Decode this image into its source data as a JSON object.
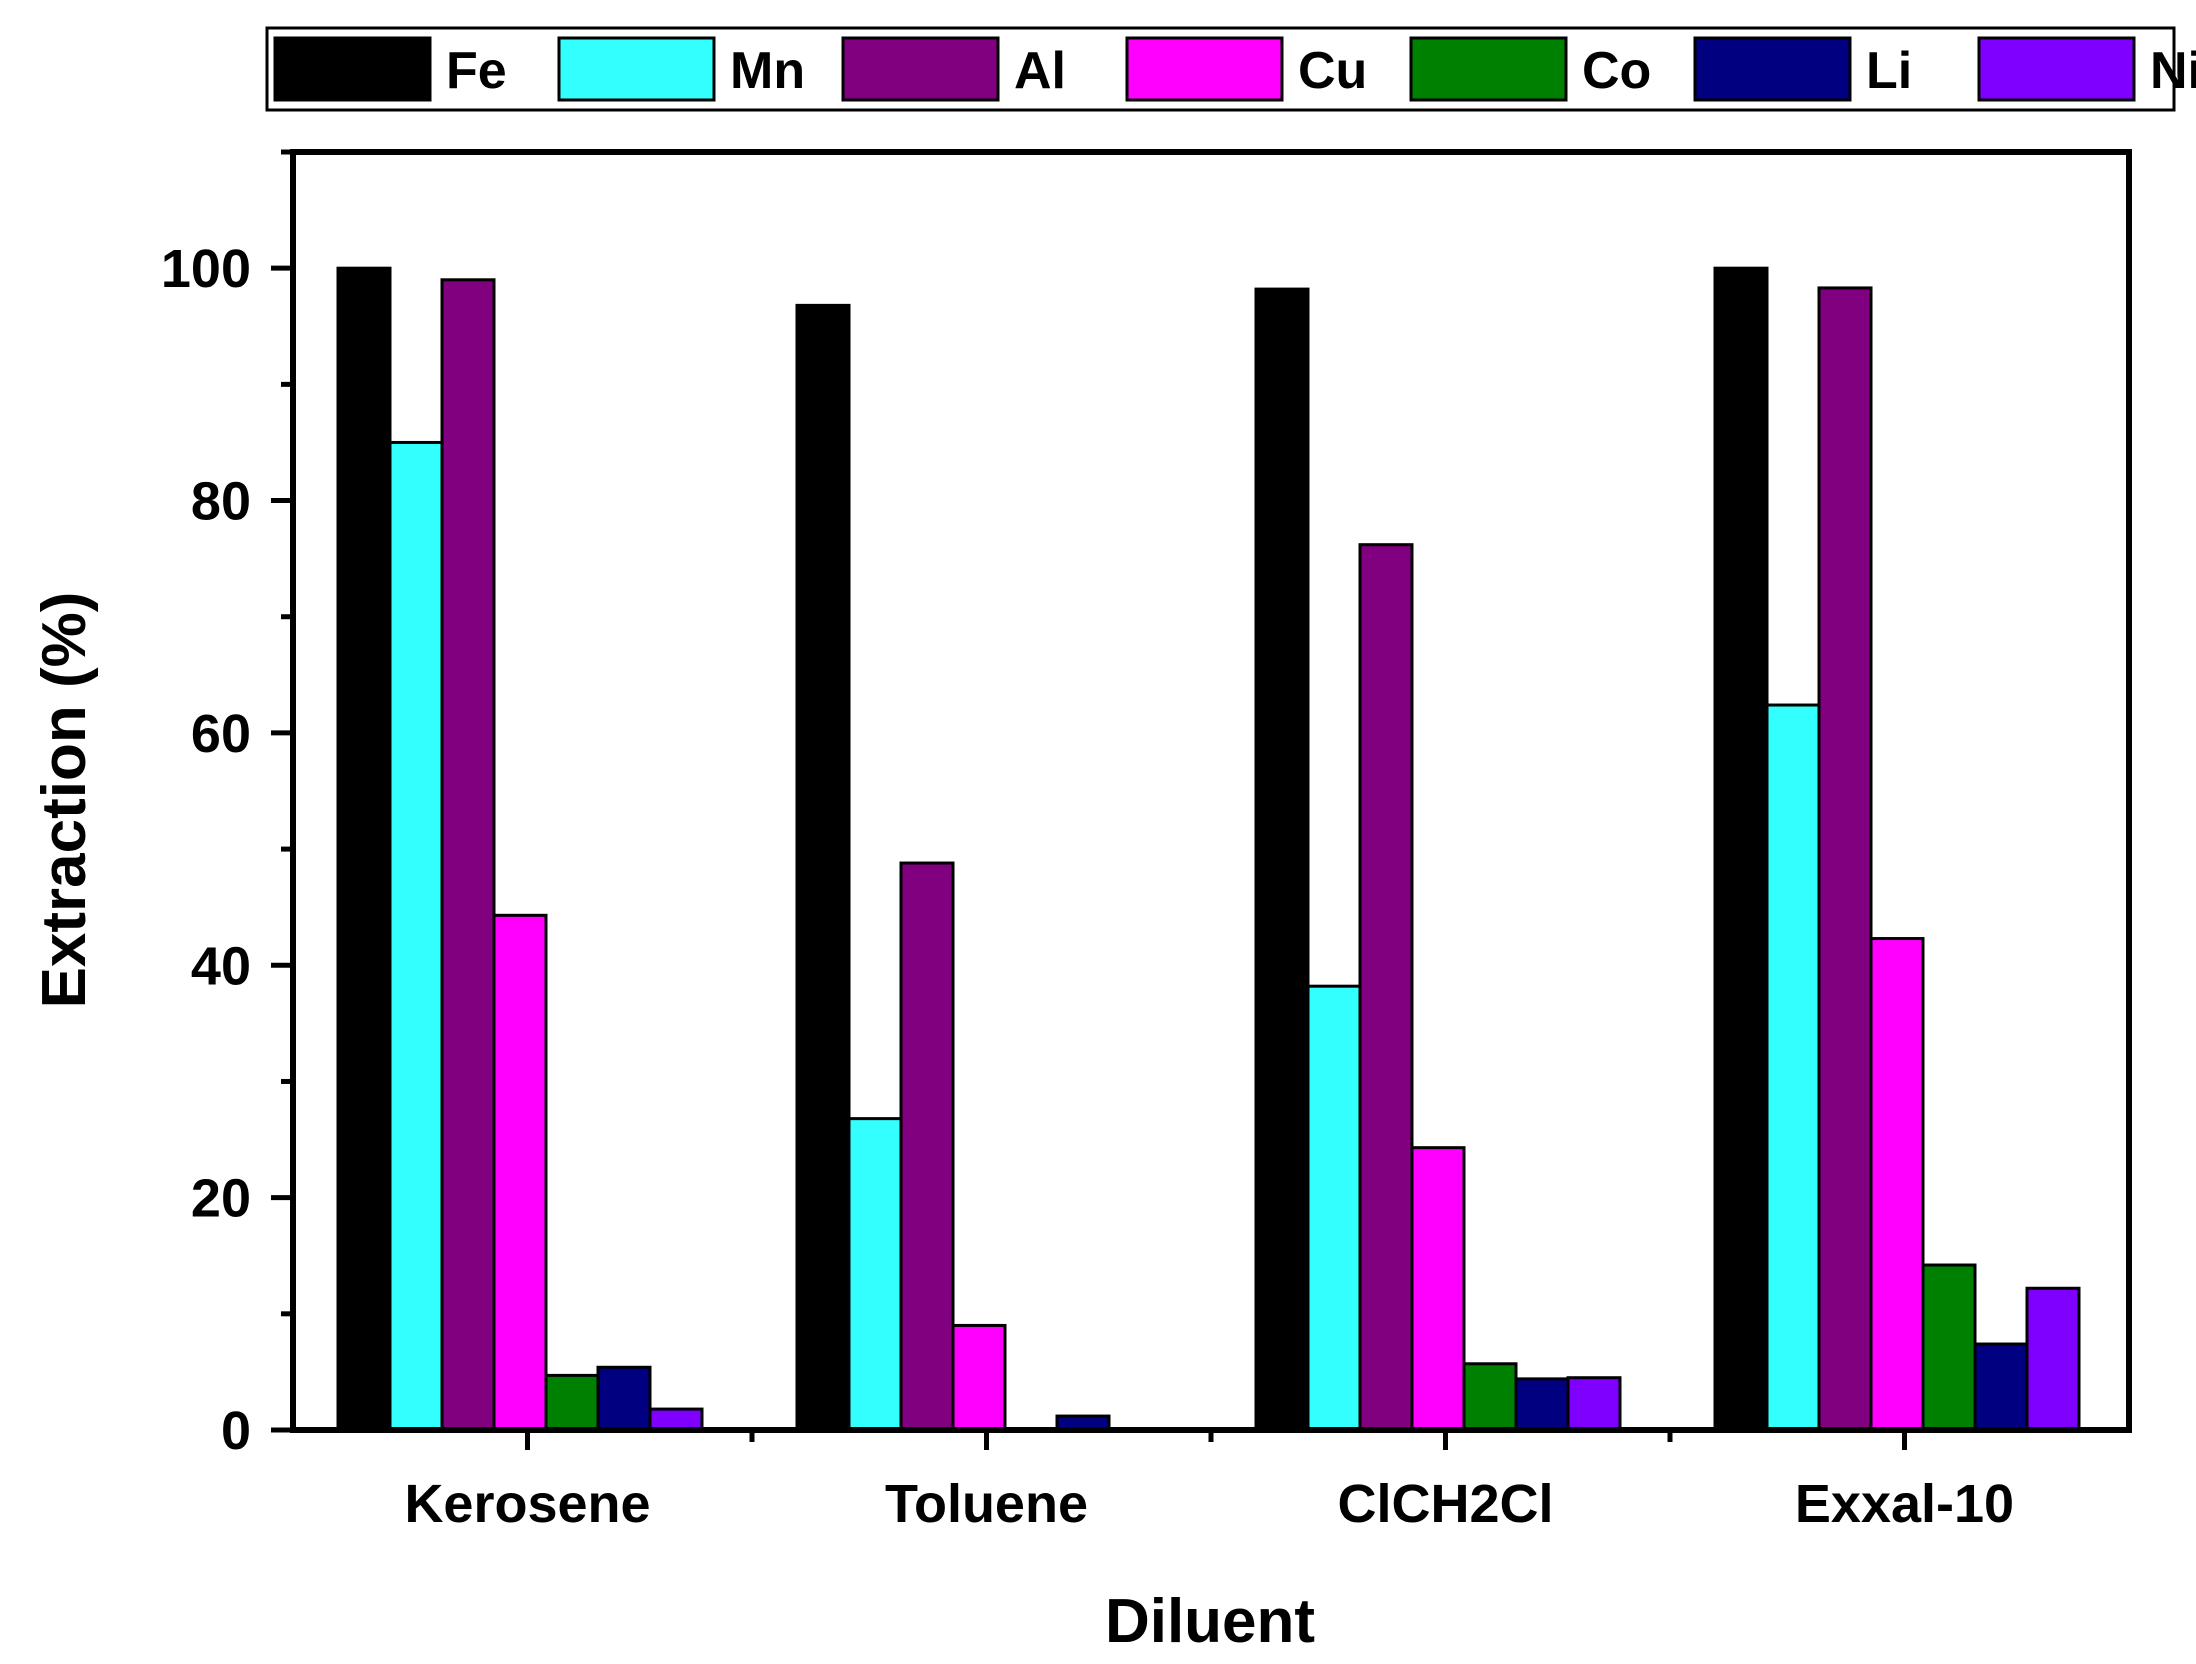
{
  "chart_data": {
    "type": "bar",
    "title": "",
    "xlabel": "Diluent",
    "ylabel": "Extraction (%)",
    "ylim": [
      0,
      110
    ],
    "yticks": [
      "0",
      "20",
      "40",
      "60",
      "80",
      "100"
    ],
    "categories": [
      "Kerosene",
      "Toluene",
      "ClCH2Cl",
      "Exxal-10"
    ],
    "legend_position": "top",
    "series": [
      {
        "name": "Fe",
        "color": "#000000",
        "values": [
          100,
          96.8,
          98.2,
          100
        ]
      },
      {
        "name": "Mn",
        "color": "#33ffff",
        "values": [
          85,
          26.8,
          38.2,
          62.4
        ]
      },
      {
        "name": "Al",
        "color": "#800080",
        "values": [
          99,
          48.8,
          76.2,
          98.3
        ]
      },
      {
        "name": "Cu",
        "color": "#ff00ff",
        "values": [
          44.3,
          9.0,
          24.3,
          42.3
        ]
      },
      {
        "name": "Co",
        "color": "#008000",
        "values": [
          4.7,
          0,
          5.7,
          14.2
        ]
      },
      {
        "name": "Li",
        "color": "#000080",
        "values": [
          5.4,
          1.2,
          4.4,
          7.4
        ]
      },
      {
        "name": "Ni",
        "color": "#8000ff",
        "values": [
          1.8,
          0,
          4.5,
          12.2
        ]
      }
    ]
  }
}
